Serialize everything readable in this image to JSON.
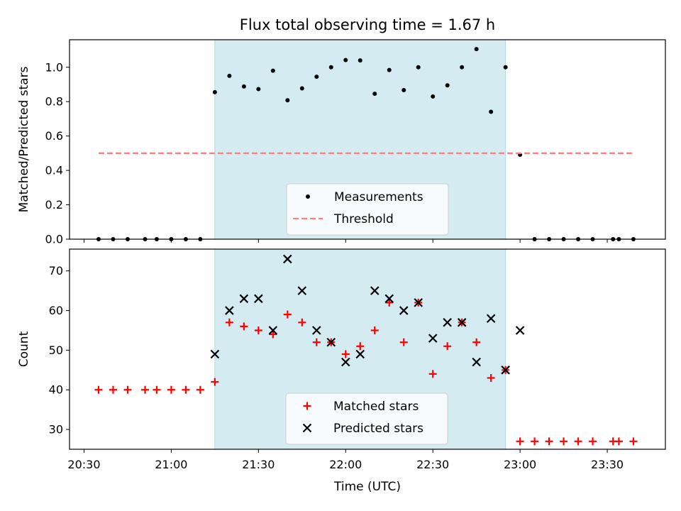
{
  "chart_data": [
    {
      "type": "scatter",
      "title": "Flux total observing time = 1.67 h",
      "xlabel": "",
      "ylabel": "Matched/Predicted stars",
      "ylim": [
        0,
        1.16
      ],
      "yticks": [
        "0.0",
        "0.2",
        "0.4",
        "0.6",
        "0.8",
        "1.0"
      ],
      "yticks_values": [
        0,
        0.2,
        0.4,
        0.6,
        0.8,
        1.0
      ],
      "highlight_span": {
        "start": "21:15",
        "end": "22:55",
        "color": "#add8e6"
      },
      "series": [
        {
          "name": "Measurements",
          "style": "dot",
          "color": "#000000",
          "points": [
            [
              "20:35",
              0
            ],
            [
              "20:40",
              0
            ],
            [
              "20:45",
              0
            ],
            [
              "20:51",
              0
            ],
            [
              "20:55",
              0
            ],
            [
              "21:00",
              0
            ],
            [
              "21:05",
              0
            ],
            [
              "21:10",
              0
            ],
            [
              "21:15",
              0.855
            ],
            [
              "21:20",
              0.95
            ],
            [
              "21:25",
              0.888
            ],
            [
              "21:30",
              0.873
            ],
            [
              "21:35",
              0.98
            ],
            [
              "21:40",
              0.808
            ],
            [
              "21:45",
              0.877
            ],
            [
              "21:50",
              0.945
            ],
            [
              "21:55",
              1.0
            ],
            [
              "22:00",
              1.042
            ],
            [
              "22:05",
              1.04
            ],
            [
              "22:10",
              0.846
            ],
            [
              "22:15",
              0.984
            ],
            [
              "22:20",
              0.867
            ],
            [
              "22:25",
              1.0
            ],
            [
              "22:30",
              0.83
            ],
            [
              "22:35",
              0.895
            ],
            [
              "22:40",
              1.0
            ],
            [
              "22:45",
              1.106
            ],
            [
              "22:50",
              0.741
            ],
            [
              "22:55",
              1.0
            ],
            [
              "23:00",
              0.491
            ],
            [
              "23:05",
              0
            ],
            [
              "23:10",
              0
            ],
            [
              "23:15",
              0
            ],
            [
              "23:20",
              0
            ],
            [
              "23:25",
              0
            ],
            [
              "23:32",
              0
            ],
            [
              "23:34",
              0
            ],
            [
              "23:39",
              0
            ]
          ]
        },
        {
          "name": "Threshold",
          "style": "dashed",
          "color": "#ff7f7f",
          "points": [
            [
              "20:35",
              0.5
            ],
            [
              "23:39",
              0.5
            ]
          ]
        }
      ],
      "legend": {
        "placement": "lower center"
      }
    },
    {
      "type": "scatter",
      "title": "",
      "xlabel": "Time (UTC)",
      "ylabel": "Count",
      "ylim": [
        25,
        75.5
      ],
      "yticks": [
        "30",
        "40",
        "50",
        "60",
        "70"
      ],
      "yticks_values": [
        30,
        40,
        50,
        60,
        70
      ],
      "x_range": [
        "20:25",
        "23:50"
      ],
      "xticks": [
        "20:30",
        "21:00",
        "21:30",
        "22:00",
        "22:30",
        "23:00",
        "23:30"
      ],
      "highlight_span": {
        "start": "21:15",
        "end": "22:55",
        "color": "#add8e6"
      },
      "series": [
        {
          "name": "Matched stars",
          "style": "plus",
          "color": "#ff0000",
          "points": [
            [
              "20:35",
              40
            ],
            [
              "20:40",
              40
            ],
            [
              "20:45",
              40
            ],
            [
              "20:51",
              40
            ],
            [
              "20:55",
              40
            ],
            [
              "21:00",
              40
            ],
            [
              "21:05",
              40
            ],
            [
              "21:10",
              40
            ],
            [
              "21:15",
              42
            ],
            [
              "21:20",
              57
            ],
            [
              "21:25",
              56
            ],
            [
              "21:30",
              55
            ],
            [
              "21:35",
              54
            ],
            [
              "21:40",
              59
            ],
            [
              "21:45",
              57
            ],
            [
              "21:50",
              52
            ],
            [
              "21:55",
              52
            ],
            [
              "22:00",
              49
            ],
            [
              "22:05",
              51
            ],
            [
              "22:10",
              55
            ],
            [
              "22:15",
              62
            ],
            [
              "22:20",
              52
            ],
            [
              "22:25",
              62
            ],
            [
              "22:30",
              44
            ],
            [
              "22:35",
              51
            ],
            [
              "22:40",
              57
            ],
            [
              "22:45",
              52
            ],
            [
              "22:50",
              43
            ],
            [
              "22:55",
              45
            ],
            [
              "23:00",
              27
            ],
            [
              "23:05",
              27
            ],
            [
              "23:10",
              27
            ],
            [
              "23:15",
              27
            ],
            [
              "23:20",
              27
            ],
            [
              "23:25",
              27
            ],
            [
              "23:32",
              27
            ],
            [
              "23:34",
              27
            ],
            [
              "23:39",
              27
            ]
          ]
        },
        {
          "name": "Predicted stars",
          "style": "cross",
          "color": "#000000",
          "points": [
            [
              "21:15",
              49
            ],
            [
              "21:20",
              60
            ],
            [
              "21:25",
              63
            ],
            [
              "21:30",
              63
            ],
            [
              "21:35",
              55
            ],
            [
              "21:40",
              73
            ],
            [
              "21:45",
              65
            ],
            [
              "21:50",
              55
            ],
            [
              "21:55",
              52
            ],
            [
              "22:00",
              47
            ],
            [
              "22:05",
              49
            ],
            [
              "22:10",
              65
            ],
            [
              "22:15",
              63
            ],
            [
              "22:20",
              60
            ],
            [
              "22:25",
              62
            ],
            [
              "22:30",
              53
            ],
            [
              "22:35",
              57
            ],
            [
              "22:40",
              57
            ],
            [
              "22:45",
              47
            ],
            [
              "22:50",
              58
            ],
            [
              "22:55",
              45
            ],
            [
              "23:00",
              55
            ]
          ]
        }
      ],
      "legend": {
        "placement": "lower center"
      }
    }
  ]
}
